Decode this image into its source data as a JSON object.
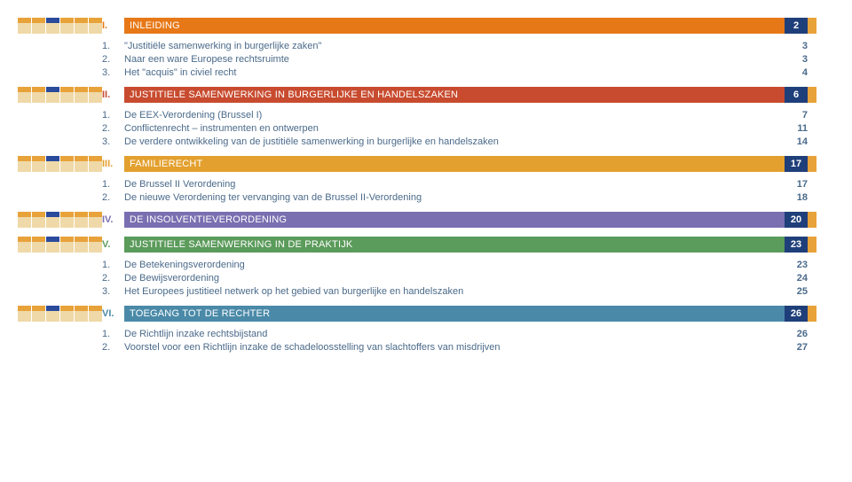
{
  "icon_colors": [
    "#e8a23a",
    "#e8a23a",
    "#2a4b9b",
    "#e8a23a",
    "#e8a23a",
    "#e8a23a"
  ],
  "icon_bg": "#f0d9a8",
  "text_color": "#4a6a8a",
  "sections": [
    {
      "roman": "I.",
      "title": "INLEIDING",
      "page": "2",
      "bar_color": "#e77817",
      "page_bg": "#1f3f7a",
      "end_color": "#e8a23a",
      "items": [
        {
          "n": "1.",
          "text": "\"Justitiële samenwerking in burgerlijke zaken\"",
          "page": "3"
        },
        {
          "n": "2.",
          "text": "Naar een ware Europese rechtsruimte",
          "page": "3"
        },
        {
          "n": "3.",
          "text": "Het \"acquis\" in civiel recht",
          "page": "4"
        }
      ]
    },
    {
      "roman": "II.",
      "title": "JUSTITIELE SAMENWERKING IN BURGERLIJKE EN HANDELSZAKEN",
      "page": "6",
      "bar_color": "#c84b2f",
      "page_bg": "#1f3f7a",
      "end_color": "#e8a23a",
      "items": [
        {
          "n": "1.",
          "text": "De EEX-Verordening (Brussel I)",
          "page": "7"
        },
        {
          "n": "2.",
          "text": "Conflictenrecht – instrumenten  en ontwerpen",
          "page": "11"
        },
        {
          "n": "3.",
          "text": "De verdere ontwikkeling van de justitiële samenwerking in burgerlijke en handelszaken",
          "page": "14"
        }
      ]
    },
    {
      "roman": "III.",
      "title": "FAMILIERECHT",
      "page": "17",
      "bar_color": "#e3a02e",
      "page_bg": "#1f3f7a",
      "end_color": "#e8a23a",
      "items": [
        {
          "n": "1.",
          "text": "De Brussel II Verordening",
          "page": "17"
        },
        {
          "n": "2.",
          "text": "De nieuwe Verordening ter vervanging van de Brussel II-Verordening",
          "page": "18"
        }
      ]
    },
    {
      "roman": "IV.",
      "title": "DE INSOLVENTIEVERORDENING",
      "page": "20",
      "bar_color": "#7a6fb0",
      "page_bg": "#1f3f7a",
      "end_color": "#e8a23a",
      "items": []
    },
    {
      "roman": "V.",
      "title": "JUSTITIELE SAMENWERKING IN DE PRAKTIJK",
      "page": "23",
      "bar_color": "#5b9b5b",
      "page_bg": "#1f3f7a",
      "end_color": "#e8a23a",
      "items": [
        {
          "n": "1.",
          "text": "De Betekeningsverordening",
          "page": "23"
        },
        {
          "n": "2.",
          "text": "De Bewijsverordening",
          "page": "24"
        },
        {
          "n": "3.",
          "text": "Het Europees justitieel netwerk op het gebied van burgerlijke en handelszaken",
          "page": "25"
        }
      ]
    },
    {
      "roman": "VI.",
      "title": "TOEGANG TOT DE RECHTER",
      "page": "26",
      "bar_color": "#4a8aa8",
      "page_bg": "#1f3f7a",
      "end_color": "#e8a23a",
      "items": [
        {
          "n": "1.",
          "text": "De Richtlijn inzake rechtsbijstand",
          "page": "26"
        },
        {
          "n": "2.",
          "text": "Voorstel voor een Richtlijn inzake de schadeloosstelling van slachtoffers van misdrijven",
          "page": "27"
        }
      ]
    }
  ]
}
